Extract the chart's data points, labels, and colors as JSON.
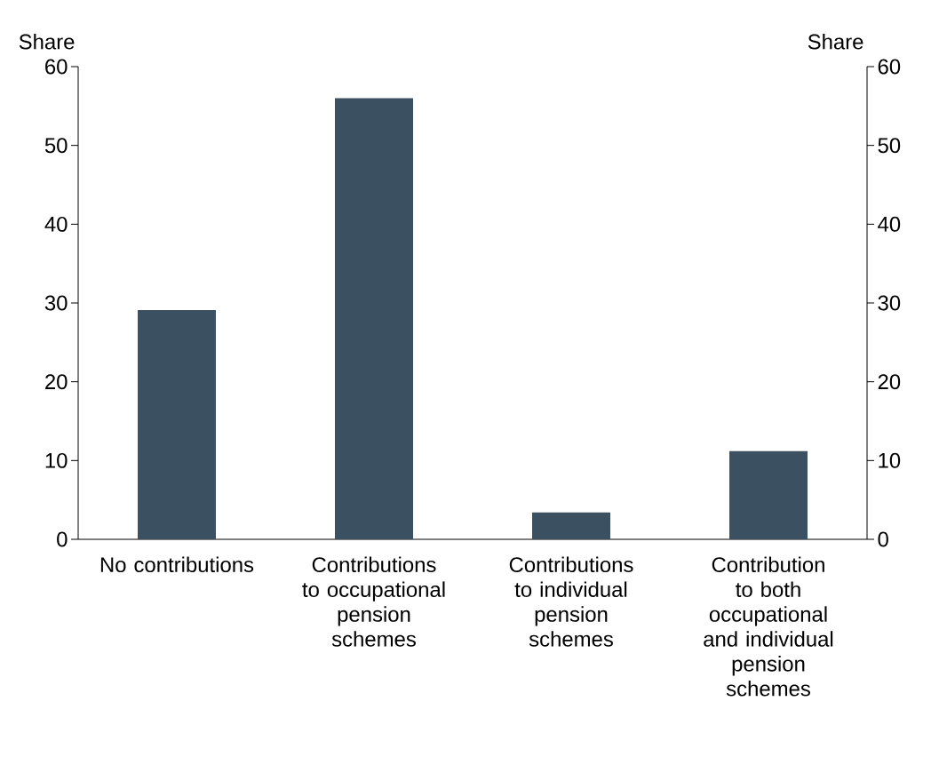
{
  "chart_data": {
    "type": "bar",
    "categories": [
      "No contributions",
      "Contributions to occupational pension schemes",
      "Contributions to individual pension schemes",
      "Contribution to both occupational and individual pension schemes"
    ],
    "values": [
      29.1,
      56,
      3.4,
      11.2
    ],
    "color": "#3b5061",
    "ylabel": "Share",
    "y2label": "Share",
    "ylim": [
      0,
      60
    ],
    "yticks": [
      0,
      10,
      20,
      30,
      40,
      50,
      60
    ],
    "y2lim": [
      0,
      60
    ],
    "y2ticks": [
      0,
      10,
      20,
      30,
      40,
      50,
      60
    ]
  }
}
